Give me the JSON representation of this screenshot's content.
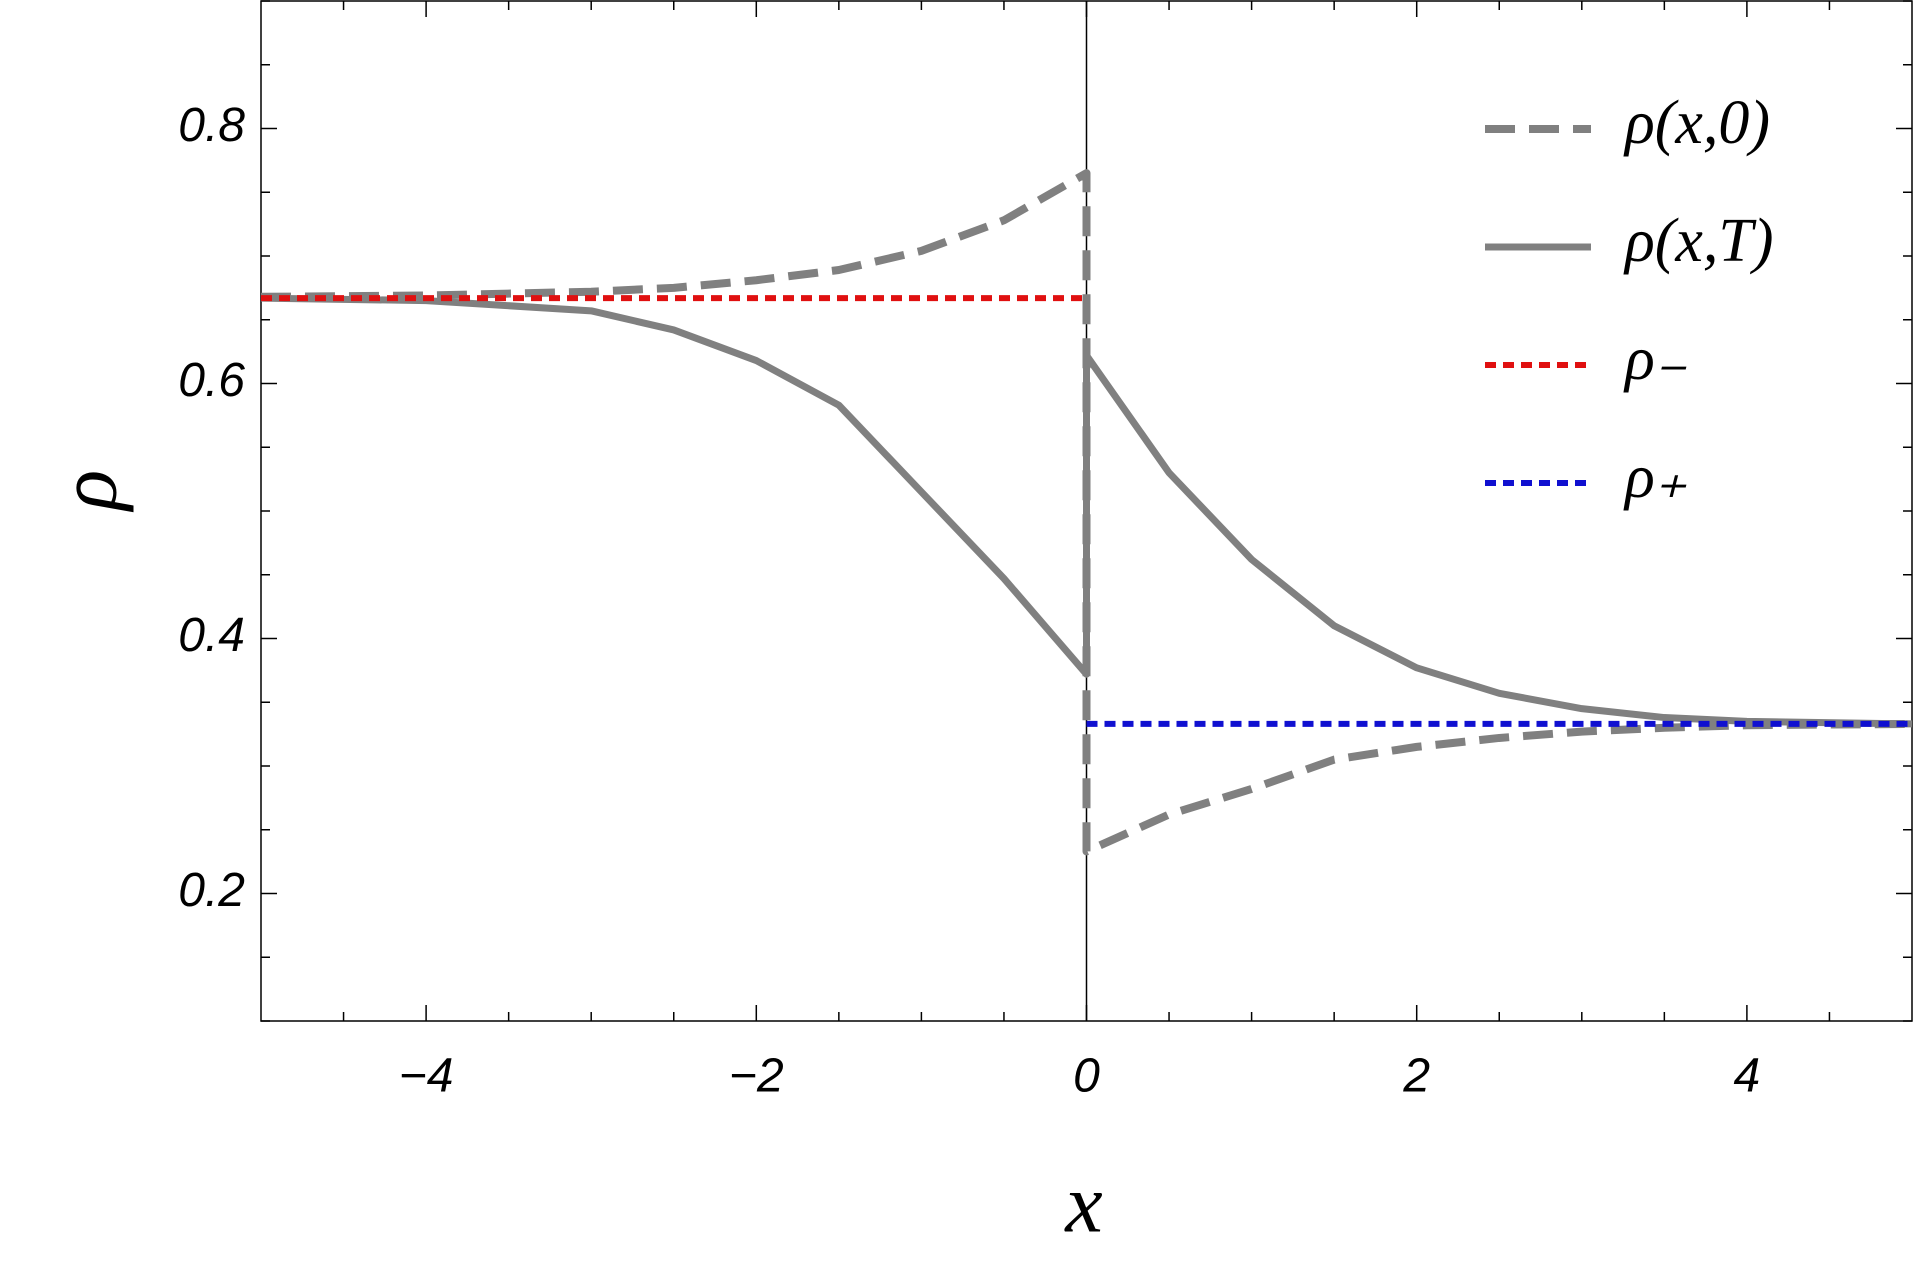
{
  "chart_data": {
    "type": "line",
    "x_label": "x",
    "y_label": "ρ",
    "x": [
      -5,
      -4,
      -3,
      -2.5,
      -2,
      -1.5,
      -1,
      -0.5,
      0,
      0,
      0.5,
      1,
      1.5,
      2,
      2.5,
      3,
      3.5,
      4,
      5
    ],
    "series": [
      {
        "name": "ρ(x,0)",
        "color": "#808080",
        "dash": "dashed",
        "values": [
          0.668,
          0.669,
          0.672,
          0.675,
          0.681,
          0.689,
          0.704,
          0.728,
          0.765,
          0.233,
          0.262,
          0.282,
          0.305,
          0.315,
          0.322,
          0.327,
          0.33,
          0.332,
          0.333
        ]
      },
      {
        "name": "ρ(x,T)",
        "color": "#808080",
        "dash": "solid",
        "values": [
          0.667,
          0.665,
          0.657,
          0.642,
          0.618,
          0.583,
          0.515,
          0.447,
          0.372,
          0.622,
          0.53,
          0.462,
          0.41,
          0.377,
          0.357,
          0.345,
          0.338,
          0.335,
          0.333
        ]
      },
      {
        "name": "ρ₋",
        "color": "#e01010",
        "dash": "dotted",
        "values": [
          0.667,
          0.667,
          0.667,
          0.667,
          0.667,
          0.667,
          0.667,
          0.667,
          0.667,
          null,
          null,
          null,
          null,
          null,
          null,
          null,
          null,
          null,
          null
        ]
      },
      {
        "name": "ρ₊",
        "color": "#1010d0",
        "dash": "dotted",
        "values": [
          null,
          null,
          null,
          null,
          null,
          null,
          null,
          null,
          null,
          0.333,
          0.333,
          0.333,
          0.333,
          0.333,
          0.333,
          0.333,
          0.333,
          0.333,
          0.333
        ]
      }
    ],
    "xlim": [
      -5,
      5
    ],
    "ylim": [
      0.1,
      0.9
    ],
    "xticks": [
      {
        "value": -4,
        "label": "−4"
      },
      {
        "value": -2,
        "label": "−2"
      },
      0,
      2,
      4
    ],
    "yticks": [
      0.2,
      0.4,
      0.6,
      0.8
    ],
    "xminorticks": [
      -4.5,
      -3.5,
      -3,
      -2.5,
      -1.5,
      -1,
      -0.5,
      0.5,
      1,
      1.5,
      2.5,
      3,
      3.5,
      4.5
    ],
    "yminorticks": [
      0.1,
      0.15,
      0.25,
      0.3,
      0.35,
      0.45,
      0.5,
      0.55,
      0.65,
      0.7,
      0.75,
      0.85,
      0.9
    ],
    "legend": "top-right",
    "grid": false
  }
}
